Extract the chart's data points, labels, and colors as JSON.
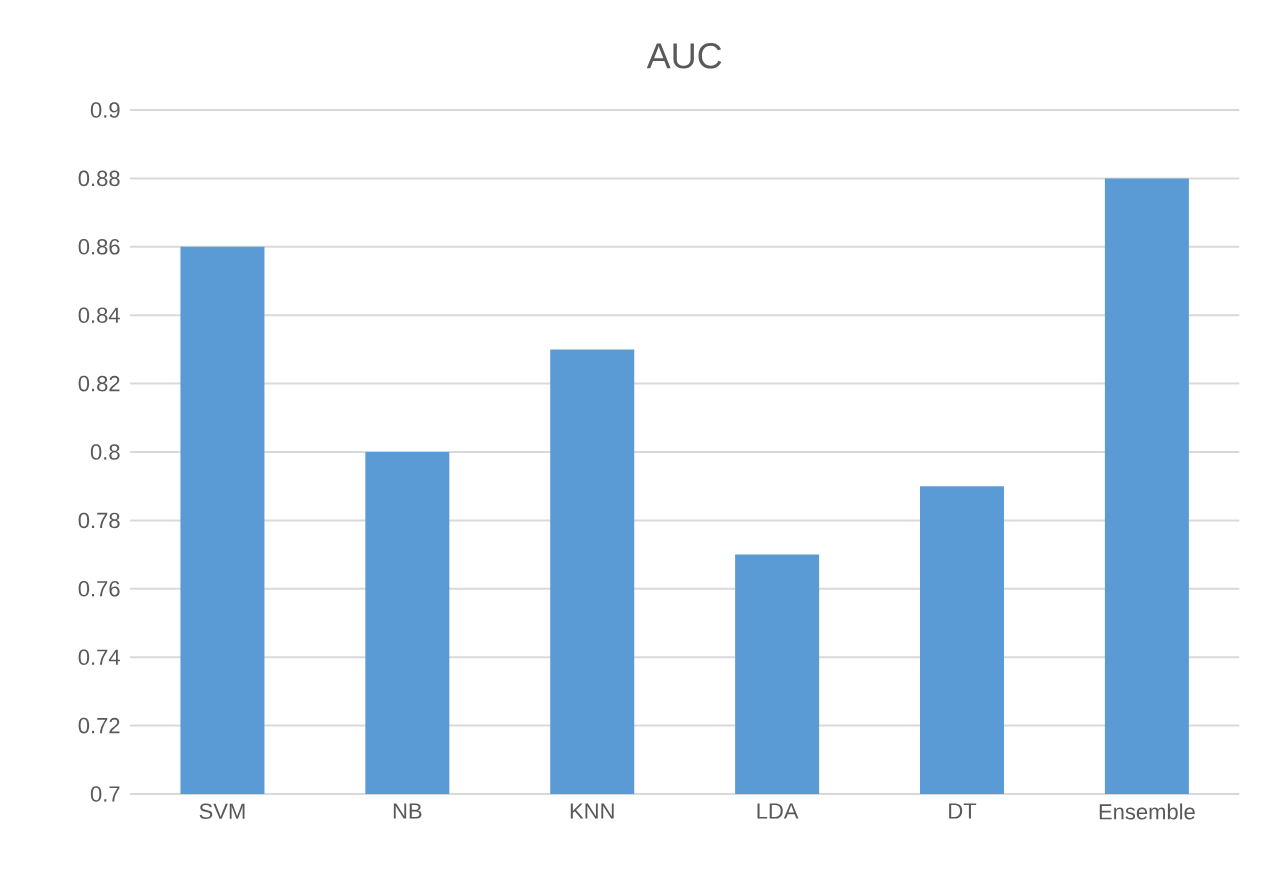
{
  "chart_data": {
    "type": "bar",
    "title": "AUC",
    "categories": [
      "SVM",
      "NB",
      "KNN",
      "LDA",
      "DT",
      "Ensemble"
    ],
    "values": [
      0.86,
      0.8,
      0.83,
      0.77,
      0.79,
      0.88
    ],
    "color": "#5b9bd5",
    "ylim": [
      0.7,
      0.9
    ],
    "yticks": [
      0.7,
      0.72,
      0.74,
      0.76,
      0.78,
      0.8,
      0.82,
      0.84,
      0.86,
      0.88,
      0.9
    ],
    "grid": "y"
  }
}
